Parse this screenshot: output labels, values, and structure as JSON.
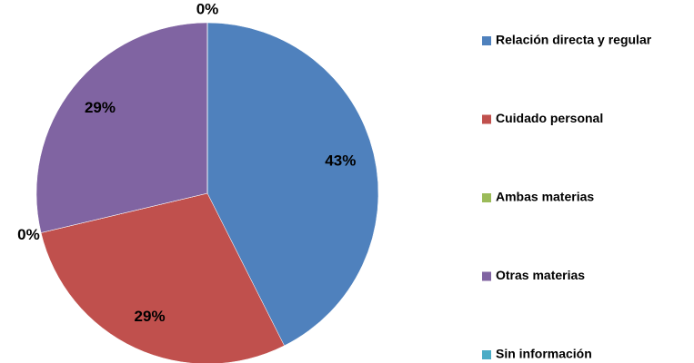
{
  "chart_data": {
    "type": "pie",
    "categories": [
      "Relación directa y regular",
      "Cuidado personal",
      "Ambas materias",
      "Otras materias",
      "Sin información"
    ],
    "values": [
      43,
      29,
      0,
      29,
      0
    ],
    "value_labels": [
      "43%",
      "29%",
      "0%",
      "29%",
      "0%"
    ],
    "colors": [
      "#4f81bd",
      "#c0504d",
      "#9bbb59",
      "#8064a2",
      "#4bacc6"
    ],
    "legend": "right"
  }
}
